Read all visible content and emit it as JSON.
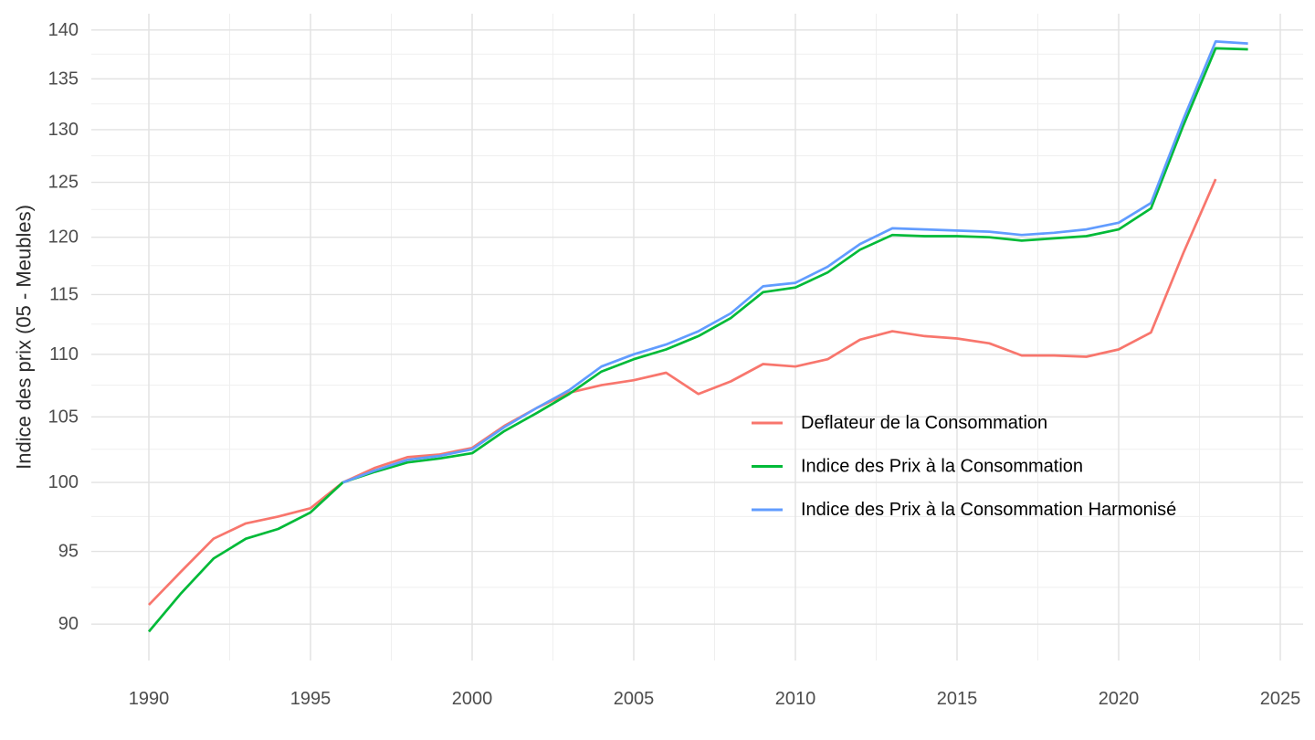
{
  "chart_data": {
    "type": "line",
    "title": "",
    "xlabel": "",
    "ylabel": "Indice des prix (05 - Meubles)",
    "y_scale": "log",
    "grid": true,
    "legend_position": "inside-right-middle",
    "x_ticks": [
      "1990",
      "1995",
      "2000",
      "2005",
      "2010",
      "2015",
      "2020",
      "2025"
    ],
    "y_ticks": [
      "90",
      "95",
      "100",
      "105",
      "110",
      "115",
      "120",
      "125",
      "130",
      "135",
      "140"
    ],
    "y_tick_values": [
      90,
      95,
      100,
      105,
      110,
      115,
      120,
      125,
      130,
      135,
      140
    ],
    "x_tick_values": [
      1990,
      1995,
      2000,
      2005,
      2010,
      2015,
      2020,
      2025
    ],
    "ylim": [
      87.6,
      141.7
    ],
    "xlim": [
      1988.2,
      2025.7
    ],
    "years": [
      1990,
      1991,
      1992,
      1993,
      1994,
      1995,
      1996,
      1997,
      1998,
      1999,
      2000,
      2001,
      2002,
      2003,
      2004,
      2005,
      2006,
      2007,
      2008,
      2009,
      2010,
      2011,
      2012,
      2013,
      2014,
      2015,
      2016,
      2017,
      2018,
      2019,
      2020,
      2021,
      2022,
      2023,
      2024
    ],
    "series": [
      {
        "name": "Deflateur de la Consommation",
        "color": "#F8766D",
        "values": [
          91.3,
          93.6,
          95.9,
          97.0,
          97.5,
          98.1,
          100.0,
          101.1,
          101.9,
          102.1,
          102.6,
          104.3,
          105.7,
          106.9,
          107.5,
          107.9,
          108.5,
          106.8,
          107.8,
          109.2,
          109.0,
          109.6,
          111.2,
          111.9,
          111.5,
          111.3,
          110.9,
          109.9,
          109.9,
          109.8,
          110.4,
          111.8,
          118.6,
          125.3,
          null
        ]
      },
      {
        "name": "Indice des Prix à la Consommation",
        "color": "#00BA38",
        "values": [
          89.5,
          92.1,
          94.5,
          95.9,
          96.6,
          97.8,
          100.0,
          100.8,
          101.5,
          101.8,
          102.2,
          103.9,
          105.3,
          106.8,
          108.6,
          109.6,
          110.4,
          111.5,
          113.0,
          115.2,
          115.6,
          116.9,
          118.9,
          120.2,
          120.1,
          120.1,
          120.0,
          119.7,
          119.9,
          120.1,
          120.7,
          122.6,
          130.4,
          138.1,
          138.0
        ]
      },
      {
        "name": "Indice des Prix à la Consommation Harmonisé",
        "color": "#619CFF",
        "values": [
          null,
          null,
          null,
          null,
          null,
          null,
          100.0,
          100.9,
          101.7,
          102.0,
          102.5,
          104.2,
          105.7,
          107.1,
          109.0,
          110.0,
          110.8,
          111.9,
          113.4,
          115.7,
          116.0,
          117.4,
          119.4,
          120.8,
          120.7,
          120.6,
          120.5,
          120.2,
          120.4,
          120.7,
          121.3,
          123.1,
          131.0,
          138.8,
          138.6
        ]
      }
    ],
    "colors": {
      "background": "#FFFFFF",
      "grid_major": "#E2E2E2",
      "grid_minor": "#EFEFEF",
      "tick_text": "#4D4D4D",
      "axis_title_text": "#2B2B2B",
      "legend_text": "#000000"
    }
  }
}
